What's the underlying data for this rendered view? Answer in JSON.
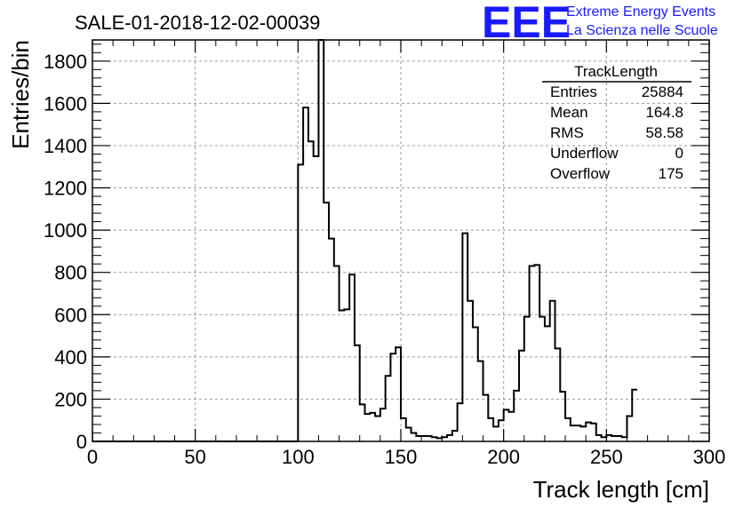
{
  "chart_data": {
    "type": "histogram",
    "title": "SALE-01-2018-12-02-00039",
    "xlabel": "Track length [cm]",
    "ylabel": "Entries/bin",
    "xlim": [
      0,
      300
    ],
    "ylim": [
      0,
      1900
    ],
    "x_ticks": [
      0,
      50,
      100,
      150,
      200,
      250,
      300
    ],
    "y_ticks": [
      0,
      200,
      400,
      600,
      800,
      1000,
      1200,
      1400,
      1600,
      1800
    ],
    "grid": true,
    "bin_width": 2.5,
    "bin_start": 0,
    "values": [
      0,
      0,
      0,
      0,
      0,
      0,
      0,
      0,
      0,
      0,
      0,
      0,
      0,
      0,
      0,
      0,
      0,
      0,
      0,
      0,
      0,
      0,
      0,
      0,
      0,
      0,
      0,
      0,
      0,
      0,
      0,
      0,
      0,
      0,
      0,
      0,
      0,
      0,
      0,
      0,
      1310,
      1580,
      1420,
      1350,
      1900,
      1130,
      960,
      830,
      620,
      625,
      790,
      455,
      175,
      130,
      135,
      120,
      155,
      310,
      415,
      445,
      110,
      65,
      40,
      25,
      25,
      25,
      20,
      15,
      20,
      30,
      50,
      180,
      985,
      665,
      540,
      380,
      220,
      110,
      70,
      100,
      150,
      140,
      240,
      430,
      590,
      830,
      835,
      590,
      545,
      665,
      440,
      235,
      110,
      75,
      75,
      70,
      90,
      85,
      30,
      20,
      30,
      25,
      25,
      20,
      120,
      245
    ]
  },
  "stats_box": {
    "title": "TrackLength",
    "rows": [
      {
        "label": "Entries",
        "value": "25884"
      },
      {
        "label": "Mean",
        "value": "164.8"
      },
      {
        "label": "RMS",
        "value": "58.58"
      },
      {
        "label": "Underflow",
        "value": "0"
      },
      {
        "label": "Overflow",
        "value": "175"
      }
    ]
  },
  "logo": {
    "mark": "EEE",
    "line1": "Extreme Energy Events",
    "line2": "La Scienza nelle Scuole",
    "color": "#1a1aff"
  }
}
